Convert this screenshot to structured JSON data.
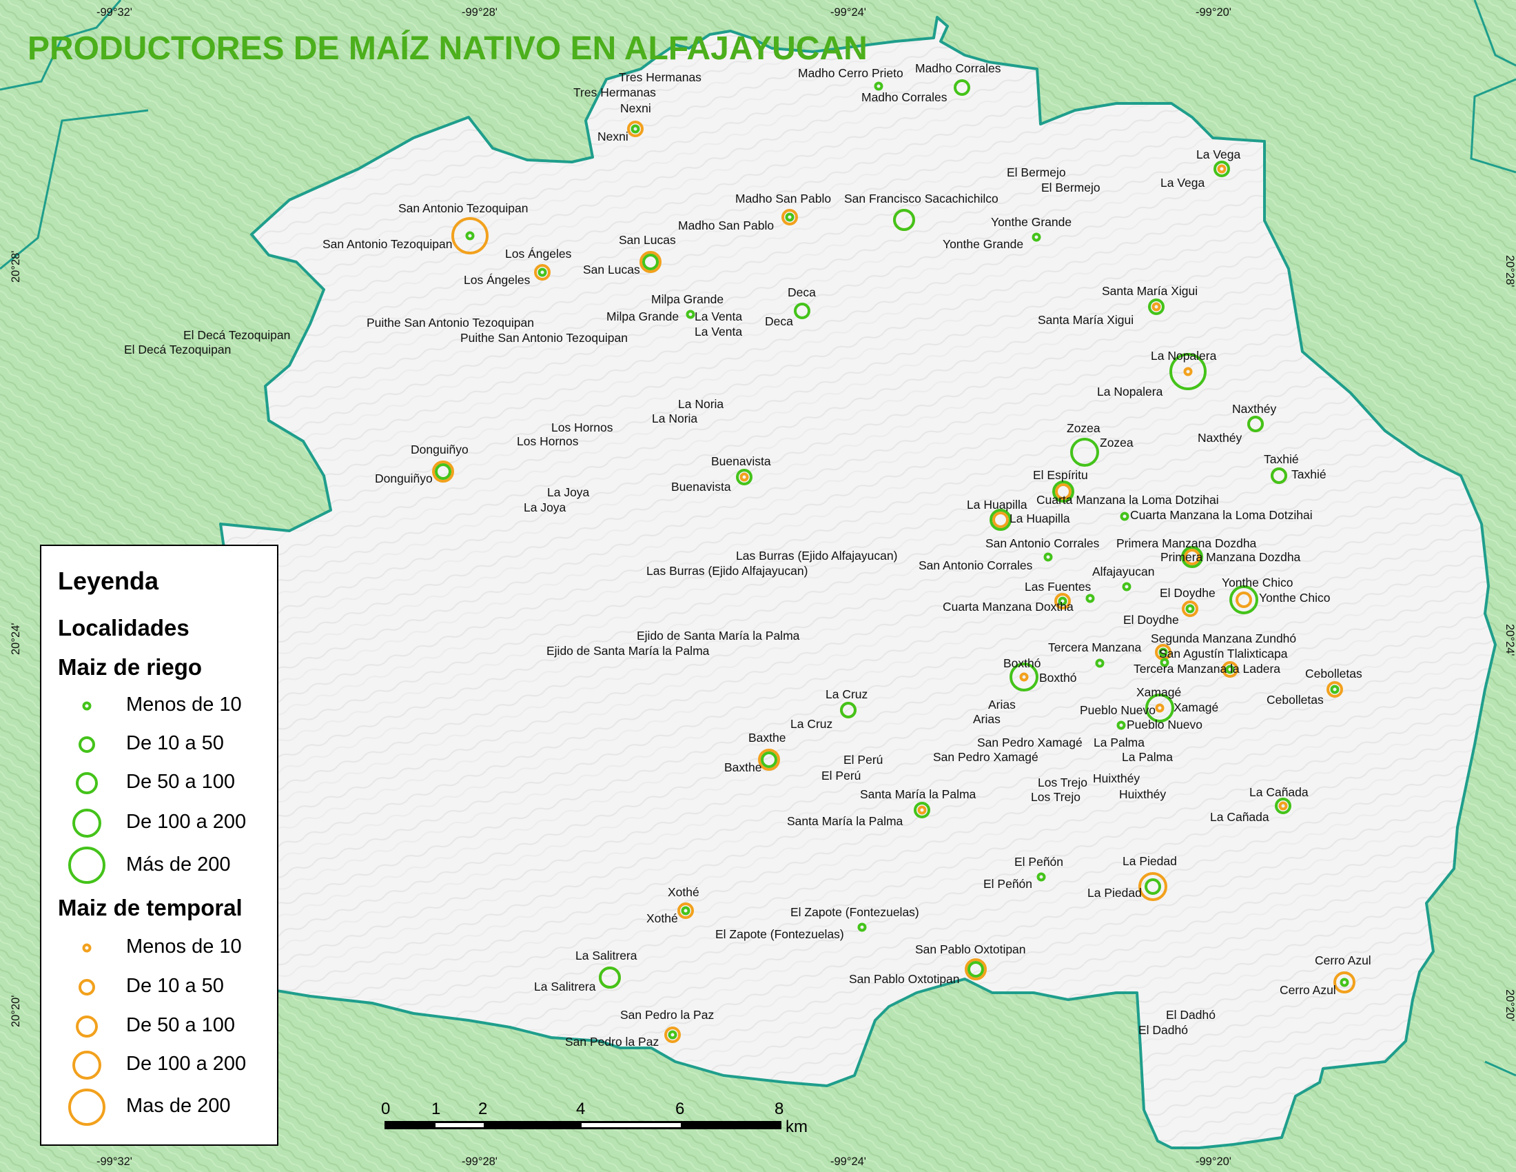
{
  "title": "PRODUCTORES DE MAÍZ NATIVO EN ALFAJAYUCAN",
  "coordinates": {
    "top": [
      "-99°32'",
      "-99°28'",
      "-99°24'",
      "-99°20'"
    ],
    "bottom": [
      "-99°32'",
      "-99°28'",
      "-99°24'",
      "-99°20'"
    ],
    "left": [
      "20°28'",
      "20°24'",
      "20°20'"
    ],
    "right": [
      "20°28'",
      "20°24'",
      "20°20'"
    ]
  },
  "legend": {
    "title": "Leyenda",
    "section": "Localidades",
    "riego_title": "Maiz de riego",
    "riego_items": [
      "Menos de 10",
      "De 10 a 50",
      "De 50 a 100",
      "De 100 a 200",
      "Más de 200"
    ],
    "temporal_title": "Maiz de temporal",
    "temporal_items": [
      "Menos de 10",
      "De 10 a 50",
      "De 50 a 100",
      "De 100 a 200",
      "Mas de 200"
    ]
  },
  "scale": {
    "ticks": [
      "0",
      "1",
      "2",
      "4",
      "6",
      "8"
    ],
    "unit": "km"
  },
  "colors": {
    "riego": "#44c31a",
    "temporal": "#f2a11d",
    "border": "#1f9e8c",
    "outside": "#b9e4b4",
    "inside": "#f6f6f6",
    "title": "#4caf1c"
  },
  "localities": [
    {
      "label_a": "Tres Hermanas",
      "label_b": "Tres Hermanas"
    },
    {
      "label_a": "Madho Cerro Prieto",
      "label_b": "",
      "riego": "Menos de 10"
    },
    {
      "label_a": "Madho Corrales",
      "label_b": "Madho Corrales",
      "riego": "De 10 a 50"
    },
    {
      "label_a": "Nexni",
      "label_b": "Nexni",
      "riego": "Menos de 10",
      "temporal": "De 10 a 50"
    },
    {
      "label_a": "La Vega",
      "label_b": "La Vega",
      "riego": "De 10 a 50",
      "temporal": "Menos de 10"
    },
    {
      "label_a": "El Bermejo",
      "label_b": "El Bermejo"
    },
    {
      "label_a": "Madho San Pablo",
      "label_b": "Madho San Pablo",
      "riego": "Menos de 10",
      "temporal": "De 10 a 50"
    },
    {
      "label_a": "San Francisco Sacachichilco",
      "label_b": "",
      "riego": "De 50 a 100",
      "temporal": "De 50 a 100"
    },
    {
      "label_a": "San Antonio Tezoquipan",
      "label_b": "San Antonio Tezoquipan",
      "riego": "Menos de 10",
      "temporal": "Mas de 200"
    },
    {
      "label_a": "Yonthe Grande",
      "label_b": "Yonthe Grande",
      "riego": "Menos de 10"
    },
    {
      "label_a": "San Lucas",
      "label_b": "San Lucas",
      "riego": "De 10 a 50",
      "temporal": "De 50 a 100"
    },
    {
      "label_a": "Los Ángeles",
      "label_b": "Los Ángeles",
      "riego": "Menos de 10",
      "temporal": "De 10 a 50"
    },
    {
      "label_a": "Deca",
      "label_b": "Deca",
      "riego": "De 10 a 50"
    },
    {
      "label_a": "Santa María Xigui",
      "label_b": "Santa María Xigui",
      "riego": "De 10 a 50",
      "temporal": "Menos de 10"
    },
    {
      "label_a": "Milpa Grande",
      "label_b": "Milpa Grande",
      "riego": "Menos de 10"
    },
    {
      "label_a": "La Venta",
      "label_b": "La Venta"
    },
    {
      "label_a": "Puithe San Antonio Tezoquipan",
      "label_b": "Puithe San Antonio Tezoquipan"
    },
    {
      "label_a": "El Decá Tezoquipan",
      "label_b": "El Decá Tezoquipan"
    },
    {
      "label_a": "La Nopalera",
      "label_b": "La Nopalera",
      "riego": "Más de 200",
      "temporal": "Menos de 10"
    },
    {
      "label_a": "La Noria",
      "label_b": "La Noria"
    },
    {
      "label_a": "Los Hornos",
      "label_b": "Los Hornos"
    },
    {
      "label_a": "Naxthéy",
      "label_b": "Naxthéy",
      "riego": "De 10 a 50",
      "temporal": "De 10 a 50"
    },
    {
      "label_a": "Zozea",
      "label_b": "Zozea",
      "riego": "De 100 a 200"
    },
    {
      "label_a": "Donguiñyo",
      "label_b": "Donguiñyo",
      "riego": "De 10 a 50",
      "temporal": "De 50 a 100"
    },
    {
      "label_a": "Buenavista",
      "label_b": "Buenavista",
      "riego": "De 10 a 50",
      "temporal": "Menos de 10"
    },
    {
      "label_a": "Taxhié",
      "label_b": "Taxhié",
      "riego": "De 10 a 50",
      "temporal": "De 10 a 50"
    },
    {
      "label_a": "El Espíritu",
      "label_b": "",
      "riego": "De 50 a 100",
      "temporal": "De 10 a 50"
    },
    {
      "label_a": "La Joya",
      "label_b": "La Joya"
    },
    {
      "label_a": "La Huapilla",
      "label_b": "La Huapilla",
      "riego": "De 50 a 100",
      "temporal": "De 10 a 50"
    },
    {
      "label_a": "Cuarta Manzana la Loma Dotzihai",
      "label_b": "Cuarta Manzana la Loma Dotzihai",
      "riego": "Menos de 10"
    },
    {
      "label_a": "San Antonio Corrales",
      "label_b": "San Antonio Corrales",
      "riego": "Menos de 10"
    },
    {
      "label_a": "Primera Manzana Dozdha",
      "label_b": "Primera Manzana Dozdha",
      "riego": "De 50 a 100",
      "temporal": "De 10 a 50"
    },
    {
      "label_a": "Las Burras (Ejido Alfajayucan)",
      "label_b": "Las Burras (Ejido Alfajayucan)"
    },
    {
      "label_a": "Alfajayucan",
      "label_b": "",
      "riego": "Menos de 10"
    },
    {
      "label_a": "Las Fuentes",
      "label_b": "",
      "riego": "Menos de 10"
    },
    {
      "label_a": "Cuarta Manzana Doxtha",
      "label_b": "",
      "riego": "Menos de 10",
      "temporal": "De 10 a 50"
    },
    {
      "label_a": "El Doydhe",
      "label_b": "El Doydhe",
      "riego": "Menos de 10",
      "temporal": "De 10 a 50"
    },
    {
      "label_a": "Yonthe Chico",
      "label_b": "Yonthe Chico",
      "riego": "De 100 a 200",
      "temporal": "De 10 a 50"
    },
    {
      "label_a": "Ejido de Santa María la Palma",
      "label_b": "Ejido de Santa María la Palma"
    },
    {
      "label_a": "Segunda Manzana Zundhó",
      "label_b": "",
      "riego": "Menos de 10",
      "temporal": "De 10 a 50"
    },
    {
      "label_a": "Tercera Manzana",
      "label_b": "",
      "riego": "Menos de 10"
    },
    {
      "label_a": "San Agustín Tlalixticapa",
      "label_b": "",
      "riego": "Menos de 10"
    },
    {
      "label_a": "Tercera Manzana la Ladera",
      "label_b": "",
      "riego": "Menos de 10",
      "temporal": "De 10 a 50"
    },
    {
      "label_a": "Boxthó",
      "label_b": "Boxthó",
      "riego": "De 100 a 200",
      "temporal": "Menos de 10"
    },
    {
      "label_a": "Cebolletas",
      "label_b": "Cebolletas",
      "riego": "Menos de 10",
      "temporal": "De 10 a 50"
    },
    {
      "label_a": "La Cruz",
      "label_b": "La Cruz",
      "riego": "De 10 a 50",
      "temporal": "De 10 a 50"
    },
    {
      "label_a": "Xamagé",
      "label_b": "Xamagé",
      "riego": "De 100 a 200",
      "temporal": "Menos de 10"
    },
    {
      "label_a": "Arias",
      "label_b": "Arias"
    },
    {
      "label_a": "Pueblo Nuevo",
      "label_b": "Pueblo Nuevo",
      "riego": "Menos de 10"
    },
    {
      "label_a": "Baxthe",
      "label_b": "Baxthe",
      "riego": "De 10 a 50",
      "temporal": "De 50 a 100"
    },
    {
      "label_a": "San Pedro Xamagé",
      "label_b": "San Pedro Xamagé"
    },
    {
      "label_a": "La Palma",
      "label_b": "La Palma"
    },
    {
      "label_a": "El Perú",
      "label_b": "El Perú"
    },
    {
      "label_a": "Los Trejo",
      "label_b": "Los Trejo"
    },
    {
      "label_a": "Huixthéy",
      "label_b": "Huixthéy"
    },
    {
      "label_a": "Santa María la Palma",
      "label_b": "Santa María la Palma",
      "riego": "De 10 a 50",
      "temporal": "Menos de 10"
    },
    {
      "label_a": "La Cañada",
      "label_b": "La Cañada",
      "riego": "De 10 a 50",
      "temporal": "Menos de 10"
    },
    {
      "label_a": "El Peñón",
      "label_b": "El Peñón",
      "riego": "Menos de 10"
    },
    {
      "label_a": "La Piedad",
      "label_b": "La Piedad",
      "riego": "De 10 a 50",
      "temporal": "De 100 a 200"
    },
    {
      "label_a": "Xothé",
      "label_b": "Xothé",
      "riego": "Menos de 10",
      "temporal": "De 10 a 50"
    },
    {
      "label_a": "El Zapote (Fontezuelas)",
      "label_b": "El Zapote (Fontezuelas)",
      "riego": "Menos de 10"
    },
    {
      "label_a": "La Salitrera",
      "label_b": "La Salitrera",
      "riego": "De 50 a 100",
      "temporal": "De 50 a 100"
    },
    {
      "label_a": "San Pablo Oxtotipan",
      "label_b": "San Pablo Oxtotipan",
      "riego": "De 10 a 50",
      "temporal": "De 50 a 100"
    },
    {
      "label_a": "Cerro Azul",
      "label_b": "Cerro Azul",
      "riego": "Menos de 10",
      "temporal": "De 50 a 100"
    },
    {
      "label_a": "San Pedro la Paz",
      "label_b": "San Pedro la Paz",
      "riego": "Menos de 10",
      "temporal": "De 10 a 50"
    },
    {
      "label_a": "El Dadhó",
      "label_b": "El Dadhó"
    }
  ]
}
